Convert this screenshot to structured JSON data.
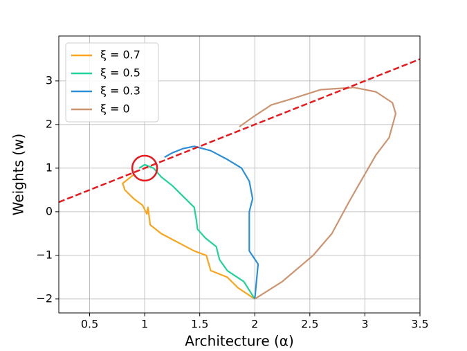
{
  "chart_data": {
    "type": "line",
    "x_label": "Architecture (α)",
    "y_label": "Weights (w)",
    "xlim": [
      0.22,
      3.5
    ],
    "ylim": [
      -2.32,
      4.03
    ],
    "xticks": [
      0.5,
      1.0,
      1.5,
      2.0,
      2.5,
      3.0,
      3.5
    ],
    "yticks": [
      {
        "value": -2,
        "label": "−2"
      },
      {
        "value": -1,
        "label": "−1"
      },
      0,
      1,
      2,
      3
    ],
    "grid": true,
    "legend": "upper left",
    "series": [
      {
        "name": "ξ = 0.7",
        "color": "#f9a51b",
        "x": [
          2.0,
          1.85,
          1.75,
          1.6,
          1.56,
          1.45,
          1.3,
          1.15,
          1.05,
          1.03,
          1.02,
          0.98,
          0.9,
          0.82,
          0.8,
          0.85,
          0.9
        ],
        "values": [
          -2.0,
          -1.75,
          -1.5,
          -1.35,
          -1.0,
          -0.9,
          -0.7,
          -0.5,
          -0.3,
          0.1,
          -0.05,
          0.15,
          0.3,
          0.5,
          0.65,
          0.75,
          0.85
        ]
      },
      {
        "name": "ξ = 0.5",
        "color": "#1fd39b",
        "x": [
          2.0,
          1.9,
          1.75,
          1.68,
          1.65,
          1.55,
          1.48,
          1.47,
          1.45,
          1.35,
          1.25,
          1.15,
          1.08,
          1.0,
          0.95
        ],
        "values": [
          -2.0,
          -1.6,
          -1.35,
          -1.1,
          -0.8,
          -0.6,
          -0.4,
          -0.2,
          0.1,
          0.35,
          0.6,
          0.8,
          1.0,
          1.08,
          1.0
        ]
      },
      {
        "name": "ξ = 0.3",
        "color": "#2a8fd8",
        "x": [
          2.0,
          2.03,
          1.95,
          1.95,
          1.95,
          1.98,
          1.95,
          1.88,
          1.75,
          1.6,
          1.45,
          1.35,
          1.25,
          1.18
        ],
        "values": [
          -2.0,
          -1.2,
          -0.9,
          -0.5,
          0.0,
          0.3,
          0.7,
          1.0,
          1.2,
          1.4,
          1.5,
          1.45,
          1.35,
          1.25
        ]
      },
      {
        "name": "ξ = 0",
        "color": "#cc9470",
        "x": [
          2.0,
          2.25,
          2.53,
          2.7,
          2.85,
          2.94,
          3.1,
          3.22,
          3.28,
          3.25,
          3.1,
          2.9,
          2.6,
          2.35,
          2.15,
          2.0,
          1.86
        ],
        "values": [
          -2.0,
          -1.6,
          -1.0,
          -0.5,
          0.2,
          0.6,
          1.3,
          1.7,
          2.25,
          2.5,
          2.75,
          2.85,
          2.8,
          2.6,
          2.45,
          2.2,
          1.95
        ]
      }
    ],
    "reference_line": {
      "x": [
        0.22,
        3.5
      ],
      "values": [
        0.22,
        3.5
      ],
      "color": "#e8191c"
    },
    "marker": {
      "x": 1.0,
      "y": 1.0,
      "color": "#e8191c"
    }
  }
}
